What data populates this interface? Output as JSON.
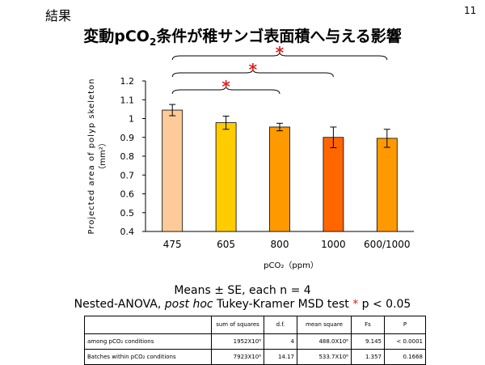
{
  "slide": {
    "section_label": "結果",
    "page_number": "11",
    "title_prefix": "変動pCO",
    "title_sub": "2",
    "title_suffix": "条件が稚サンゴ表面積へ与える影響"
  },
  "chart_data": {
    "type": "bar",
    "categories": [
      "475",
      "605",
      "800",
      "1000",
      "600/1000"
    ],
    "values": [
      1.045,
      0.978,
      0.955,
      0.9,
      0.895
    ],
    "errors": [
      0.03,
      0.035,
      0.02,
      0.055,
      0.048
    ],
    "bar_colors": [
      "#FCCB99",
      "#FFCC00",
      "#FF9900",
      "#FF6600",
      "#FF9900"
    ],
    "ylabel_line1": "Projected area of polyp skeleton",
    "ylabel_line2": "（mm²）",
    "xlabel": "pCO₂（ppm）",
    "ylim": [
      0.4,
      1.2
    ],
    "yticks": [
      "0.4",
      "0.5",
      "0.6",
      "0.7",
      "0.8",
      "0.9",
      "1",
      "1.1",
      "1.2"
    ],
    "grid": false,
    "significance": [
      {
        "from": "475",
        "to": "800",
        "mark": "*"
      },
      {
        "from": "475",
        "to": "1000",
        "mark": "*"
      },
      {
        "from": "475",
        "to": "600/1000",
        "mark": "*"
      }
    ],
    "significance_color": "#E0201B"
  },
  "notes": {
    "means_line": "Means ± SE, each n = 4",
    "test_prefix": "Nested-ANOVA, ",
    "test_italic": "post hoc",
    "test_middle": " Tukey-Kramer MSD test ",
    "test_star": "*",
    "test_suffix": " p < 0.05"
  },
  "stats_table": {
    "headers": [
      "",
      "sum of squares",
      "d.f.",
      "mean square",
      "Fs",
      "P"
    ],
    "rows": [
      {
        "label": "among pCO₂ conditions",
        "ss": "1952X10⁶",
        "df": "4",
        "ms": "488.0X10⁶",
        "fs": "9.145",
        "p": "< 0.0001"
      },
      {
        "label": "Batches within pCO₂ conditions",
        "ss": "7923X10⁶",
        "df": "14.17",
        "ms": "533.7X10⁶",
        "fs": "1.357",
        "p": "0.1668"
      }
    ]
  }
}
